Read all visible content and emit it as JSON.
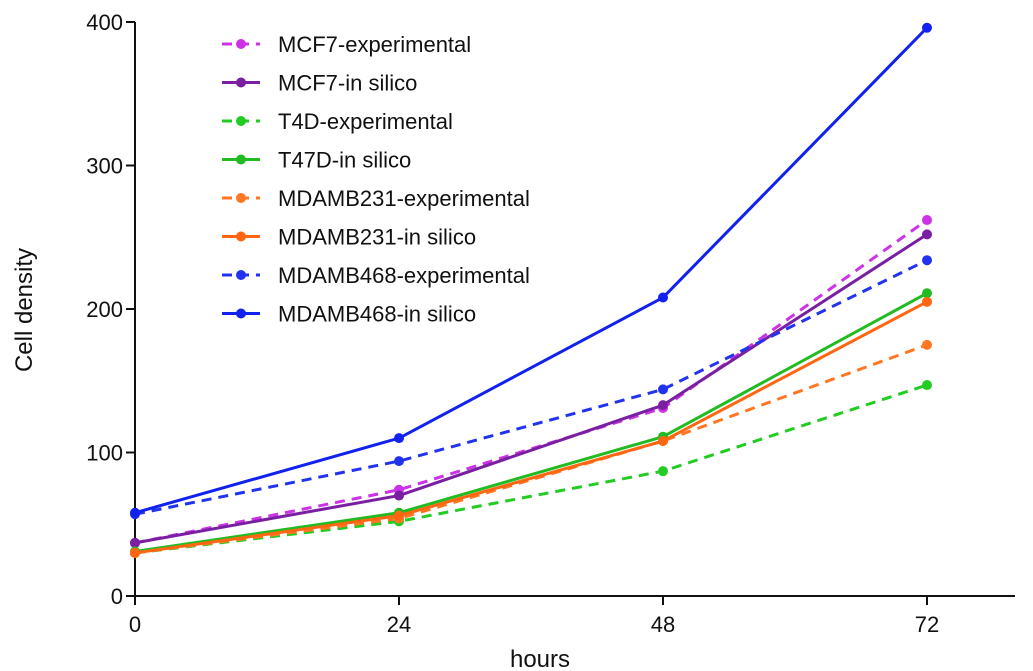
{
  "chart_data": {
    "type": "line",
    "title": "",
    "xlabel": "hours",
    "ylabel": "Cell density",
    "x": [
      0,
      24,
      48,
      72
    ],
    "xlim": [
      0,
      80
    ],
    "ylim": [
      0,
      400
    ],
    "xticks": [
      0,
      24,
      48,
      72
    ],
    "yticks": [
      0,
      100,
      200,
      300,
      400
    ],
    "grid": false,
    "legend_position": "top-left",
    "series": [
      {
        "name": "MCF7-experimental",
        "color": "#cc33e6",
        "style": "dashed",
        "values": [
          37,
          74,
          131,
          262
        ]
      },
      {
        "name": "MCF7-in silico",
        "color": "#7a1fa2",
        "style": "solid",
        "values": [
          37,
          70,
          133,
          252
        ]
      },
      {
        "name": "T4D-experimental",
        "color": "#22cc22",
        "style": "dashed",
        "values": [
          30,
          52,
          87,
          147
        ]
      },
      {
        "name": "T47D-in silico",
        "color": "#22bb22",
        "style": "solid",
        "values": [
          31,
          58,
          111,
          211
        ]
      },
      {
        "name": "MDAMB231-experimental",
        "color": "#ff7722",
        "style": "dashed",
        "values": [
          30,
          54,
          108,
          175
        ]
      },
      {
        "name": "MDAMB231-in silico",
        "color": "#ff6611",
        "style": "solid",
        "values": [
          30,
          56,
          108,
          205
        ]
      },
      {
        "name": "MDAMB468-experimental",
        "color": "#2233ee",
        "style": "dashed",
        "values": [
          57,
          94,
          144,
          234
        ]
      },
      {
        "name": "MDAMB468-in silico",
        "color": "#1122ee",
        "style": "solid",
        "values": [
          58,
          110,
          208,
          396
        ]
      }
    ]
  }
}
